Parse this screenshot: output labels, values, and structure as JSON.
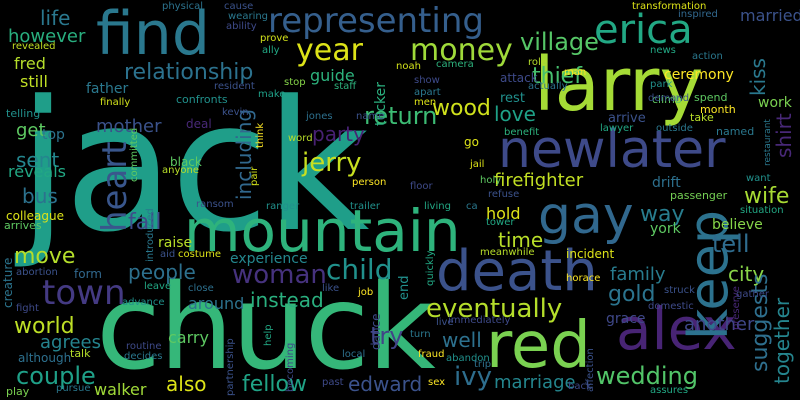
{
  "words": {
    "jack": "jack",
    "chuck": "chuck",
    "larry": "larry",
    "mountain": "mountain",
    "death": "death",
    "newlater": "newlater",
    "red": "red",
    "alex": "alex",
    "find": "find",
    "gay": "gay",
    "keep": "keep",
    "representing": "representing",
    "erica": "erica",
    "money": "money",
    "year": "year",
    "heart": "heart",
    "town": "town",
    "woman": "woman",
    "relationship": "relationship",
    "village": "village",
    "eventually": "eventually",
    "jerry": "jerry",
    "child": "child",
    "wedding": "wedding",
    "edward": "edward",
    "ivy": "ivy",
    "fellow": "fellow",
    "world": "world",
    "couple": "couple",
    "instead": "instead",
    "firefighter": "firefighter",
    "return": "return",
    "wood": "wood",
    "thief": "thief",
    "people": "people",
    "fall": "fall",
    "try": "try",
    "time": "time",
    "way": "way",
    "tell": "tell",
    "wife": "wife",
    "city": "city",
    "gold": "gold",
    "family": "family",
    "agrees": "agrees",
    "move": "move",
    "bus": "bus",
    "sent": "sent",
    "mother": "mother",
    "party": "party",
    "including": "including",
    "love": "love",
    "shirt": "shirt",
    "kiss": "kiss",
    "suggests": "suggests",
    "together": "together",
    "another": "another",
    "marriage": "marriage",
    "also": "also",
    "well": "well",
    "life": "life",
    "however": "however",
    "fred": "fred",
    "still": "still",
    "guide": "guide",
    "get": "get",
    "ceremony": "ceremony",
    "married": "married",
    "hold": "hold",
    "raise": "raise",
    "experience": "experience",
    "around": "around",
    "carry": "carry",
    "walker": "walker",
    "father": "father",
    "tucker": "tucker",
    "york": "york",
    "believe": "believe",
    "grace": "grace",
    "reveals": "reveals",
    "top": "top",
    "work": "work",
    "drift": "drift",
    "want": "want",
    "arrive": "arrive",
    "rest": "rest",
    "colleague": "colleague",
    "arrives": "arrives",
    "form": "form",
    "creature": "creature",
    "fight": "fight",
    "although": "although",
    "play": "play",
    "pursue": "pursue",
    "talk": "talk",
    "end": "end",
    "dance": "dance",
    "incident": "incident",
    "passenger": "passenger",
    "named": "named",
    "take": "take",
    "month": "month",
    "spend": "spend",
    "climb": "climb",
    "physical": "physical",
    "cause": "cause",
    "wearing": "wearing",
    "ability": "ability",
    "prove": "prove",
    "ally": "ally",
    "resident": "resident",
    "confronts": "confronts",
    "make": "make",
    "stop": "stop",
    "staff": "staff",
    "kevin": "kevin",
    "jones": "jones",
    "name": "name",
    "word": "word",
    "think": "think",
    "deal": "deal",
    "finally": "finally",
    "telling": "telling",
    "revealed": "revealed",
    "transformation": "transformation",
    "inspired": "inspired",
    "news": "news",
    "action": "action",
    "park": "park",
    "man": "man",
    "role": "role",
    "camera": "camera",
    "noah": "noah",
    "show": "show",
    "apart": "apart",
    "men": "men",
    "attack": "attack",
    "actually": "actually",
    "demand": "demand",
    "lawyer": "lawyer",
    "outside": "outside",
    "restaurant": "restaurant",
    "benefit": "benefit",
    "black": "black",
    "anyone": "anyone",
    "committed": "committed",
    "pair": "pair",
    "aid": "aid",
    "costume": "costume",
    "ransom": "ransom",
    "ranger": "ranger",
    "trailer": "trailer",
    "living": "living",
    "person": "person",
    "floor": "floor",
    "jail": "jail",
    "holy": "holy",
    "refuse": "refuse",
    "go": "go",
    "situation": "situation",
    "meanwhile": "meanwhile",
    "tower": "tower",
    "horace": "horace",
    "domestic": "domestic",
    "struck": "struck",
    "preserve": "preserve",
    "gather": "gather",
    "abortion": "abortion",
    "introduced": "introduced",
    "leave": "leave",
    "advance": "advance",
    "close": "close",
    "routine": "routine",
    "decides": "decides",
    "partnership": "partnership",
    "believe2": "believe",
    "help": "help",
    "becoming": "becoming",
    "like": "like",
    "job": "job",
    "past": "past",
    "local": "local",
    "fraud": "fraud",
    "abandon": "abandon",
    "sex": "sex",
    "live": "live",
    "turn": "turn",
    "immediately": "immediately",
    "trip": "trip",
    "back": "back",
    "affection": "affection",
    "assures": "assures",
    "quickly": "quickly",
    "ca": "ca"
  }
}
